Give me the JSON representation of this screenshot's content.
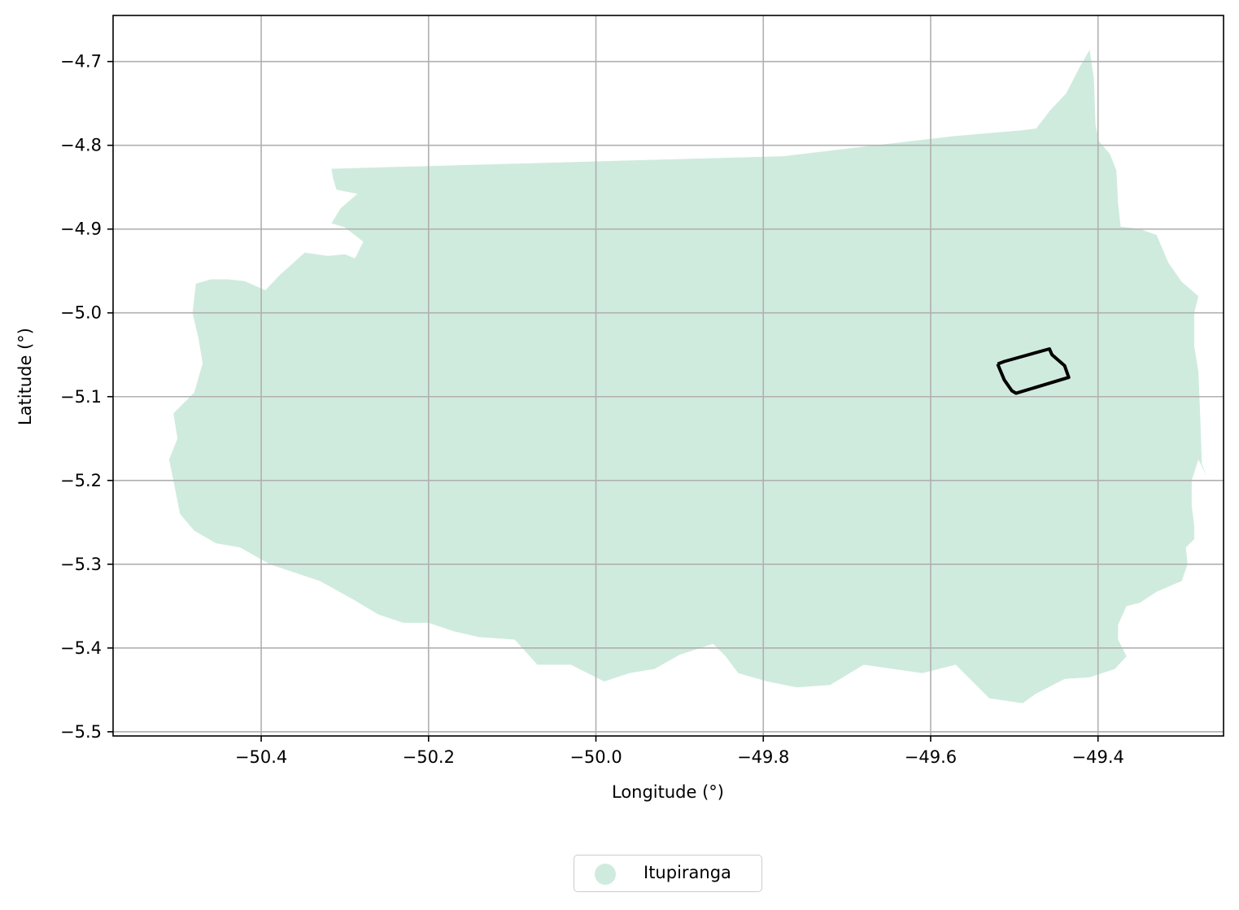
{
  "chart_data": {
    "type": "map",
    "title": "",
    "xlabel": "Longitude (°)",
    "ylabel": "Latitude (°)",
    "xlim": [
      -50.577,
      -49.25
    ],
    "ylim": [
      -5.505,
      -4.645
    ],
    "xticks": [
      -50.4,
      -50.2,
      -50.0,
      -49.8,
      -49.6,
      -49.4
    ],
    "xtick_labels": [
      "−50.4",
      "−50.2",
      "−50.0",
      "−49.8",
      "−49.6",
      "−49.4"
    ],
    "yticks": [
      -4.7,
      -4.8,
      -4.9,
      -5.0,
      -5.1,
      -5.2,
      -5.3,
      -5.4,
      -5.5
    ],
    "ytick_labels": [
      "−4.7",
      "−4.8",
      "−4.9",
      "−5.0",
      "−5.1",
      "−5.2",
      "−5.3",
      "−5.4",
      "−5.5"
    ],
    "grid": true,
    "legend_position": "bottom-center",
    "legend": [
      {
        "label": "Itupiranga",
        "color": "#cfebde"
      }
    ],
    "region": {
      "name": "Itupiranga",
      "fill": "#cfebde",
      "lonlat": [
        [
          -50.316,
          -4.828
        ],
        [
          -49.776,
          -4.813
        ],
        [
          -49.675,
          -4.801
        ],
        [
          -49.572,
          -4.789
        ],
        [
          -49.49,
          -4.782
        ],
        [
          -49.474,
          -4.78
        ],
        [
          -49.457,
          -4.758
        ],
        [
          -49.438,
          -4.738
        ],
        [
          -49.421,
          -4.705
        ],
        [
          -49.41,
          -4.686
        ],
        [
          -49.405,
          -4.72
        ],
        [
          -49.403,
          -4.775
        ],
        [
          -49.399,
          -4.795
        ],
        [
          -49.386,
          -4.81
        ],
        [
          -49.378,
          -4.83
        ],
        [
          -49.376,
          -4.87
        ],
        [
          -49.373,
          -4.897
        ],
        [
          -49.35,
          -4.9
        ],
        [
          -49.33,
          -4.907
        ],
        [
          -49.316,
          -4.94
        ],
        [
          -49.3,
          -4.963
        ],
        [
          -49.28,
          -4.98
        ],
        [
          -49.285,
          -5.0
        ],
        [
          -49.285,
          -5.04
        ],
        [
          -49.28,
          -5.07
        ],
        [
          -49.278,
          -5.12
        ],
        [
          -49.276,
          -5.18
        ],
        [
          -49.27,
          -5.195
        ],
        [
          -49.28,
          -5.175
        ],
        [
          -49.288,
          -5.2
        ],
        [
          -49.288,
          -5.23
        ],
        [
          -49.285,
          -5.255
        ],
        [
          -49.285,
          -5.27
        ],
        [
          -49.295,
          -5.28
        ],
        [
          -49.293,
          -5.3
        ],
        [
          -49.3,
          -5.32
        ],
        [
          -49.33,
          -5.333
        ],
        [
          -49.35,
          -5.346
        ],
        [
          -49.366,
          -5.35
        ],
        [
          -49.376,
          -5.372
        ],
        [
          -49.376,
          -5.39
        ],
        [
          -49.366,
          -5.41
        ],
        [
          -49.38,
          -5.425
        ],
        [
          -49.41,
          -5.435
        ],
        [
          -49.44,
          -5.437
        ],
        [
          -49.475,
          -5.455
        ],
        [
          -49.49,
          -5.466
        ],
        [
          -49.53,
          -5.46
        ],
        [
          -49.57,
          -5.42
        ],
        [
          -49.61,
          -5.43
        ],
        [
          -49.68,
          -5.42
        ],
        [
          -49.72,
          -5.444
        ],
        [
          -49.76,
          -5.447
        ],
        [
          -49.795,
          -5.44
        ],
        [
          -49.83,
          -5.43
        ],
        [
          -49.845,
          -5.41
        ],
        [
          -49.86,
          -5.395
        ],
        [
          -49.9,
          -5.408
        ],
        [
          -49.93,
          -5.425
        ],
        [
          -49.96,
          -5.43
        ],
        [
          -49.99,
          -5.44
        ],
        [
          -50.03,
          -5.42
        ],
        [
          -50.07,
          -5.42
        ],
        [
          -50.097,
          -5.39
        ],
        [
          -50.14,
          -5.387
        ],
        [
          -50.17,
          -5.38
        ],
        [
          -50.2,
          -5.37
        ],
        [
          -50.23,
          -5.37
        ],
        [
          -50.26,
          -5.36
        ],
        [
          -50.29,
          -5.342
        ],
        [
          -50.33,
          -5.32
        ],
        [
          -50.39,
          -5.3
        ],
        [
          -50.425,
          -5.28
        ],
        [
          -50.454,
          -5.275
        ],
        [
          -50.48,
          -5.26
        ],
        [
          -50.497,
          -5.24
        ],
        [
          -50.505,
          -5.2
        ],
        [
          -50.51,
          -5.175
        ],
        [
          -50.5,
          -5.15
        ],
        [
          -50.505,
          -5.12
        ],
        [
          -50.48,
          -5.095
        ],
        [
          -50.47,
          -5.06
        ],
        [
          -50.475,
          -5.03
        ],
        [
          -50.482,
          -5.0
        ],
        [
          -50.478,
          -4.965
        ],
        [
          -50.46,
          -4.96
        ],
        [
          -50.44,
          -4.96
        ],
        [
          -50.42,
          -4.962
        ],
        [
          -50.395,
          -4.973
        ],
        [
          -50.378,
          -4.955
        ],
        [
          -50.348,
          -4.928
        ],
        [
          -50.32,
          -4.932
        ],
        [
          -50.3,
          -4.93
        ],
        [
          -50.288,
          -4.935
        ],
        [
          -50.278,
          -4.915
        ],
        [
          -50.3,
          -4.898
        ],
        [
          -50.316,
          -4.893
        ],
        [
          -50.305,
          -4.875
        ],
        [
          -50.285,
          -4.858
        ],
        [
          -50.31,
          -4.853
        ],
        [
          -50.314,
          -4.84
        ]
      ]
    },
    "outline": {
      "stroke": "#000000",
      "lonlat": [
        [
          -49.52,
          -5.061
        ],
        [
          -49.512,
          -5.058
        ],
        [
          -49.458,
          -5.043
        ],
        [
          -49.455,
          -5.05
        ],
        [
          -49.44,
          -5.063
        ],
        [
          -49.435,
          -5.077
        ],
        [
          -49.498,
          -5.096
        ],
        [
          -49.503,
          -5.093
        ],
        [
          -49.512,
          -5.08
        ],
        [
          -49.52,
          -5.061
        ]
      ]
    }
  }
}
